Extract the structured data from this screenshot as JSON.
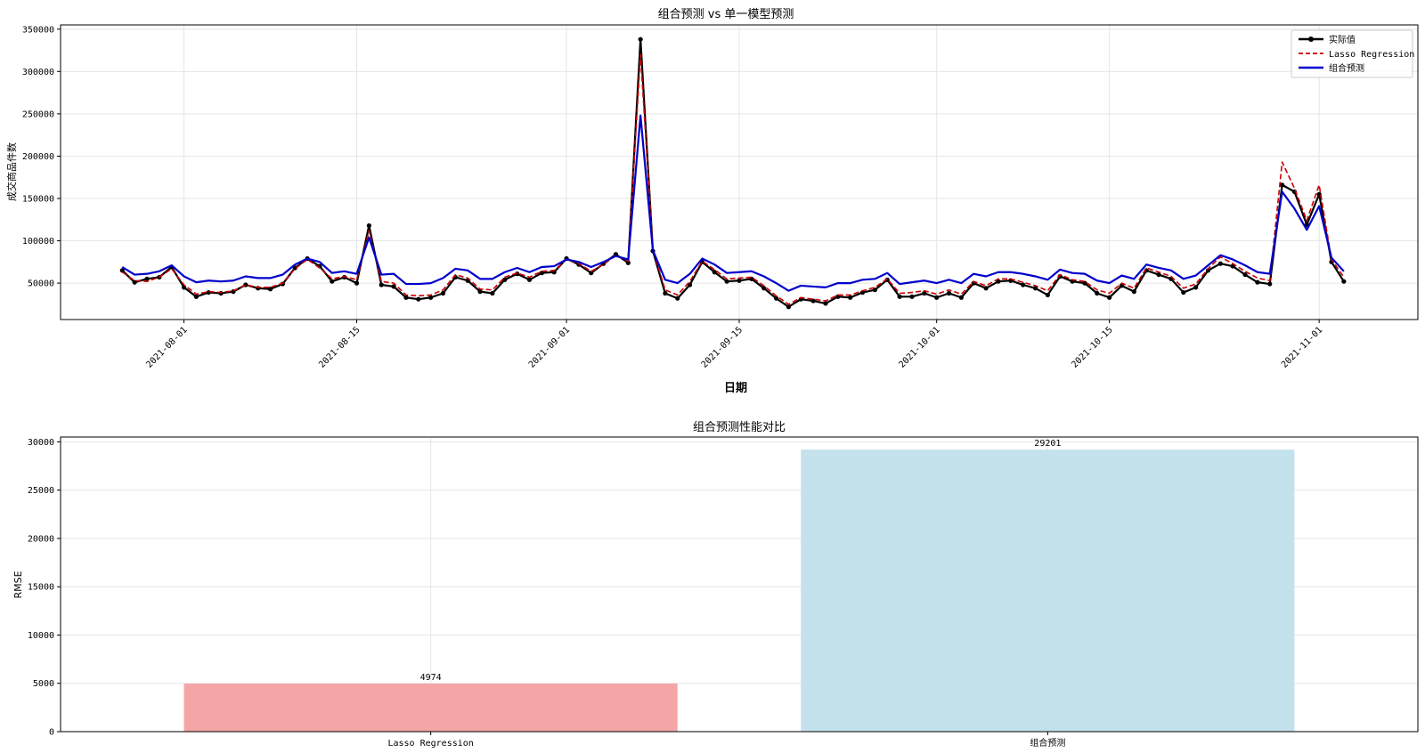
{
  "chart_data": [
    {
      "type": "line",
      "title": "组合预测 vs 单一模型预测",
      "xlabel": "日期",
      "ylabel": "成交商品件数",
      "x_start": "2021-07-27",
      "x_end": "2021-11-04",
      "xlim": [
        "2021-07-22",
        "2021-11-09"
      ],
      "ylim": [
        7000,
        355000
      ],
      "xticks": [
        "2021-08-01",
        "2021-08-15",
        "2021-09-01",
        "2021-09-15",
        "2021-10-01",
        "2021-10-15",
        "2021-11-01"
      ],
      "yticks": [
        50000,
        100000,
        150000,
        200000,
        250000,
        300000,
        350000
      ],
      "grid": true,
      "legend_position": "top-right",
      "series": [
        {
          "name": "实际值",
          "color": "#000000",
          "style": "solid-marker",
          "values": [
            65000,
            51000,
            55000,
            57000,
            69000,
            45000,
            34000,
            39000,
            38000,
            40000,
            48000,
            44000,
            43000,
            49000,
            68000,
            79000,
            70000,
            52000,
            57000,
            50000,
            118000,
            48000,
            46000,
            33000,
            31000,
            33000,
            38000,
            57000,
            53000,
            40000,
            38000,
            54000,
            61000,
            54000,
            62000,
            63000,
            79000,
            72000,
            62000,
            73000,
            84000,
            74000,
            338000,
            88000,
            38000,
            32000,
            48000,
            75000,
            63000,
            52000,
            53000,
            55000,
            44000,
            32000,
            22000,
            31000,
            29000,
            26000,
            34000,
            33000,
            39000,
            42000,
            54000,
            34000,
            34000,
            38000,
            33000,
            38000,
            33000,
            50000,
            44000,
            52000,
            53000,
            48000,
            44000,
            36000,
            58000,
            52000,
            50000,
            38000,
            33000,
            47000,
            40000,
            65000,
            60000,
            55000,
            39000,
            45000,
            65000,
            73000,
            70000,
            60000,
            51000,
            49000,
            166000,
            158000,
            119000,
            155000,
            75000,
            52000
          ]
        },
        {
          "name": "Lasso Regression",
          "color": "#cc0000",
          "style": "dashed",
          "values": [
            63000,
            53000,
            52000,
            57000,
            67000,
            48000,
            37000,
            40000,
            39000,
            41000,
            48000,
            45000,
            45000,
            50000,
            67000,
            78000,
            68000,
            55000,
            58000,
            54000,
            112000,
            52000,
            50000,
            36000,
            35000,
            36000,
            42000,
            60000,
            56000,
            43000,
            42000,
            57000,
            62000,
            57000,
            64000,
            65000,
            78000,
            73000,
            64000,
            72000,
            83000,
            76000,
            320000,
            90000,
            42000,
            36000,
            52000,
            76000,
            66000,
            55000,
            56000,
            57000,
            47000,
            35000,
            25000,
            33000,
            31000,
            29000,
            36000,
            36000,
            41000,
            45000,
            55000,
            38000,
            39000,
            41000,
            37000,
            42000,
            37000,
            52000,
            47000,
            55000,
            55000,
            51000,
            47000,
            41000,
            60000,
            54000,
            52000,
            42000,
            38000,
            50000,
            44000,
            68000,
            63000,
            58000,
            44000,
            49000,
            67000,
            81000,
            73000,
            64000,
            56000,
            53000,
            193000,
            162000,
            124000,
            166000,
            78000,
            57000
          ]
        },
        {
          "name": "组合预测",
          "color": "#0000cc",
          "style": "solid",
          "values": [
            69000,
            60000,
            61000,
            64000,
            71000,
            58000,
            51000,
            53000,
            52000,
            53000,
            58000,
            56000,
            56000,
            60000,
            72000,
            79000,
            75000,
            62000,
            64000,
            61000,
            104000,
            60000,
            61000,
            49000,
            49000,
            50000,
            56000,
            67000,
            65000,
            55000,
            55000,
            63000,
            68000,
            63000,
            69000,
            70000,
            78000,
            75000,
            69000,
            75000,
            82000,
            78000,
            248000,
            89000,
            54000,
            50000,
            61000,
            79000,
            72000,
            62000,
            63000,
            64000,
            58000,
            50000,
            41000,
            47000,
            46000,
            45000,
            50000,
            50000,
            54000,
            55000,
            62000,
            49000,
            51000,
            53000,
            50000,
            54000,
            50000,
            61000,
            58000,
            63000,
            63000,
            61000,
            58000,
            54000,
            66000,
            62000,
            61000,
            53000,
            50000,
            59000,
            55000,
            72000,
            68000,
            65000,
            55000,
            59000,
            71000,
            83000,
            78000,
            71000,
            63000,
            61000,
            158000,
            138000,
            113000,
            141000,
            80000,
            64000
          ]
        }
      ]
    },
    {
      "type": "bar",
      "title": "组合预测性能对比",
      "ylabel": "RMSE",
      "categories": [
        "Lasso Regression",
        "组合预测"
      ],
      "values": [
        4974,
        29201
      ],
      "value_labels": [
        "4974",
        "29201"
      ],
      "colors": [
        "#f4a5a6",
        "#c4e2ec"
      ],
      "ylim": [
        0,
        30500
      ],
      "yticks": [
        0,
        5000,
        10000,
        15000,
        20000,
        25000,
        30000
      ],
      "grid": true
    }
  ]
}
